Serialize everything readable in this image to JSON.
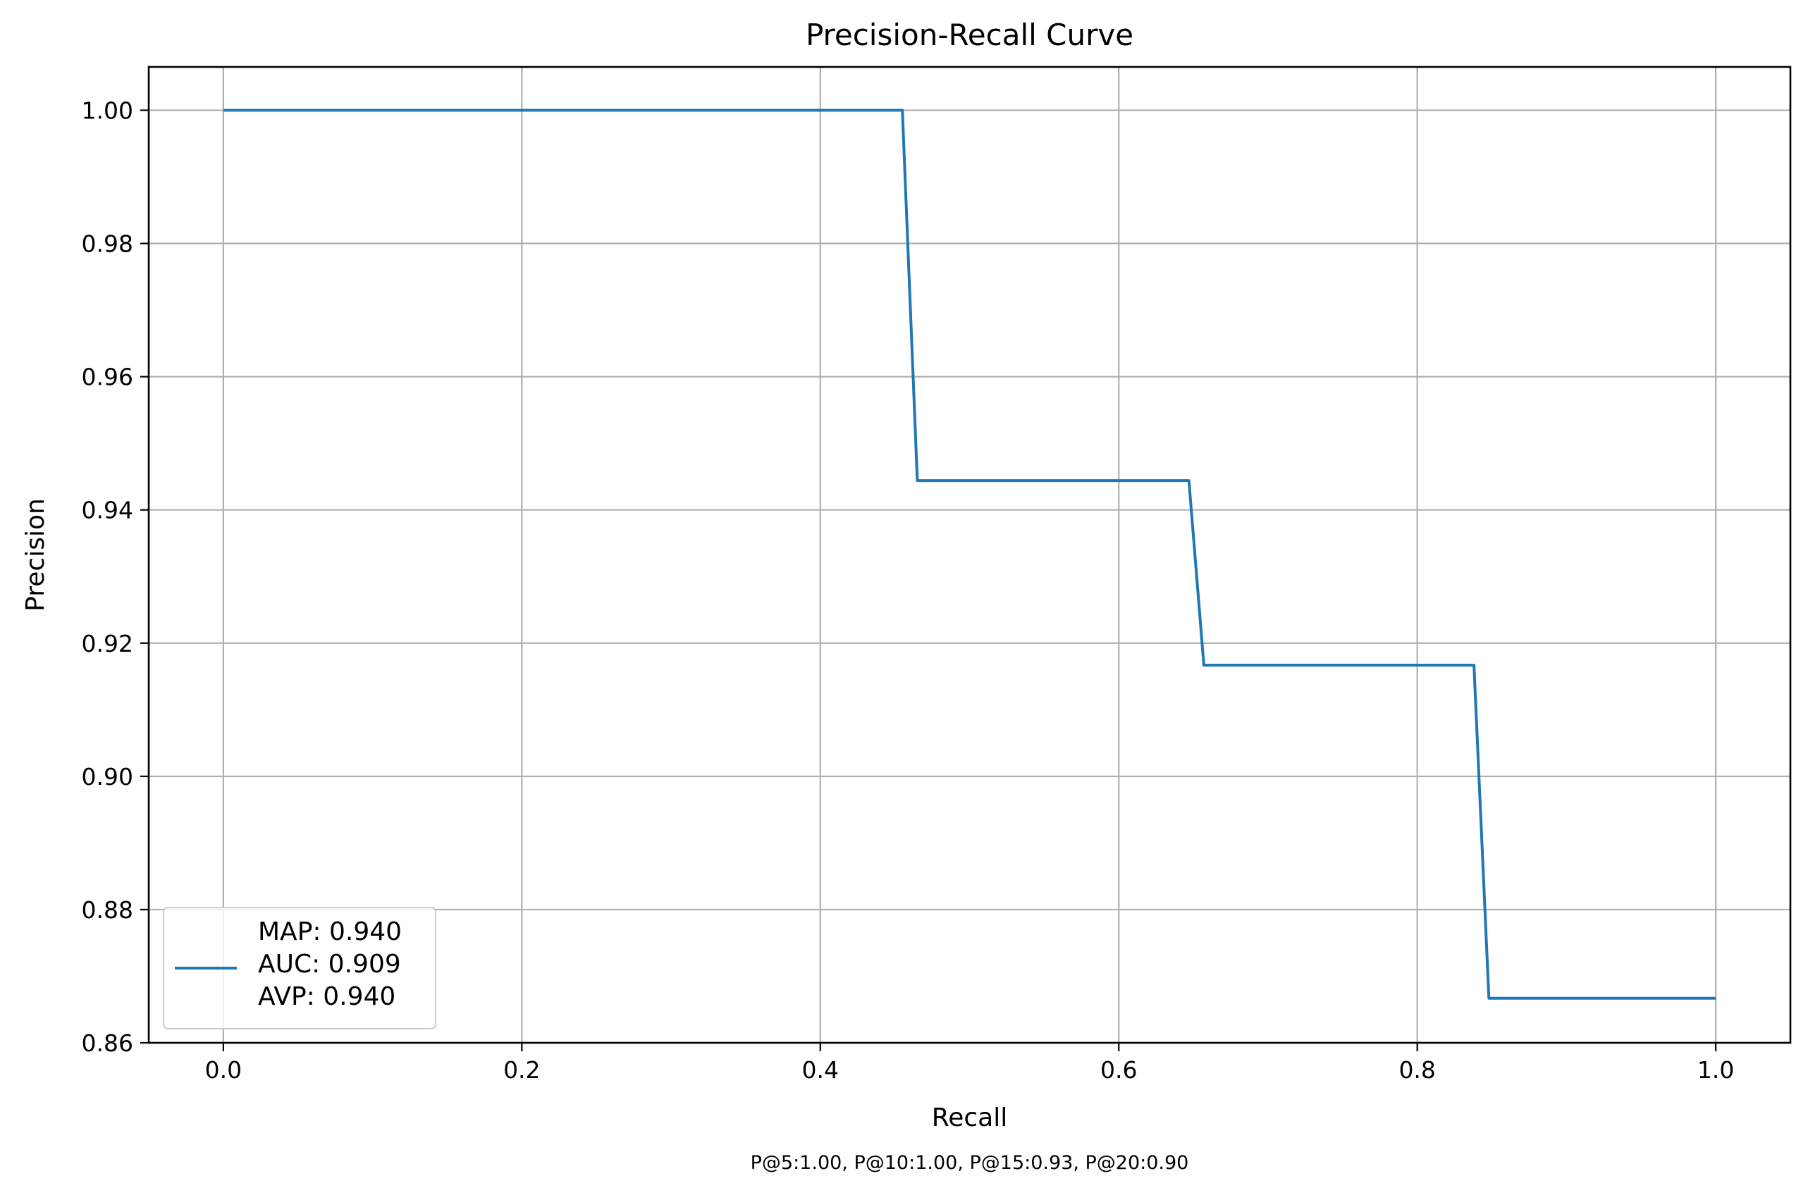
{
  "chart_data": {
    "type": "line",
    "title": "Precision-Recall Curve",
    "xlabel": "Recall",
    "ylabel": "Precision",
    "xlim": [
      -0.05,
      1.05
    ],
    "ylim": [
      0.86,
      1.0065
    ],
    "xticks": [
      0.0,
      0.2,
      0.4,
      0.6,
      0.8,
      1.0
    ],
    "xtick_labels": [
      "0.0",
      "0.2",
      "0.4",
      "0.6",
      "0.8",
      "1.0"
    ],
    "yticks": [
      0.86,
      0.88,
      0.9,
      0.92,
      0.94,
      0.96,
      0.98,
      1.0
    ],
    "ytick_labels": [
      "0.86",
      "0.88",
      "0.90",
      "0.92",
      "0.94",
      "0.96",
      "0.98",
      "1.00"
    ],
    "grid": true,
    "legend_position": "lower-left",
    "series": [
      {
        "color": "#1f77b4",
        "x": [
          0.0,
          0.455,
          0.465,
          0.647,
          0.657,
          0.838,
          0.848,
          1.0
        ],
        "y": [
          1.0,
          1.0,
          0.9444,
          0.9444,
          0.9167,
          0.9167,
          0.8667,
          0.8667
        ]
      }
    ],
    "legend_lines": [
      "MAP: 0.940",
      "AUC: 0.909",
      "AVP: 0.940"
    ],
    "footnote": "P@5:1.00, P@10:1.00, P@15:0.93, P@20:0.90"
  }
}
